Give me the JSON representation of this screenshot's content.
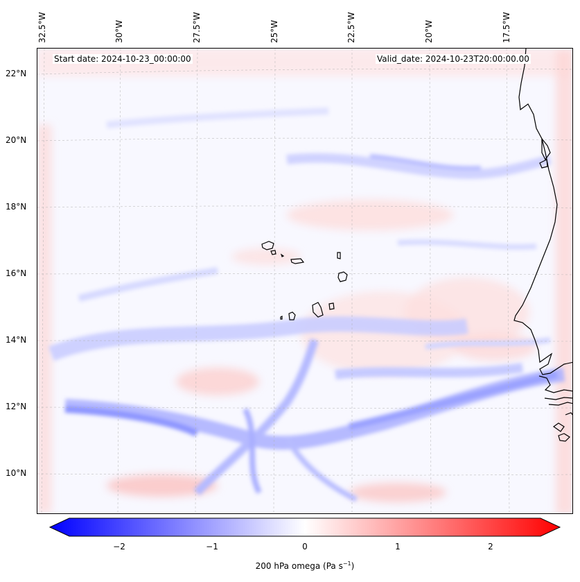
{
  "header": {
    "start_date": "Start date: 2024-10-23_00:00:00",
    "valid_date": "Valid_date: 2024-10-23T20:00:00.00"
  },
  "axes": {
    "lon_labels": [
      "32.5°W",
      "30°W",
      "27.5°W",
      "25°W",
      "22.5°W",
      "20°W",
      "17.5°W"
    ],
    "lat_labels": [
      "22°N",
      "20°N",
      "18°N",
      "16°N",
      "14°N",
      "12°N",
      "10°N"
    ]
  },
  "colorbar": {
    "ticks": [
      "−2",
      "−1",
      "0",
      "1",
      "2"
    ],
    "label_main": "200 hPa omega (Pa s",
    "label_sup": "−1",
    "label_close": ")",
    "min_color": "#0000ff",
    "mid_color": "#ffffff",
    "max_color": "#ff0000",
    "range": [
      -2.75,
      2.75
    ]
  },
  "map": {
    "coastline_color": "#000000",
    "gridline_color": "#b0b0b0",
    "features": [
      "cape-verde-islands",
      "west-african-coastline"
    ]
  }
}
